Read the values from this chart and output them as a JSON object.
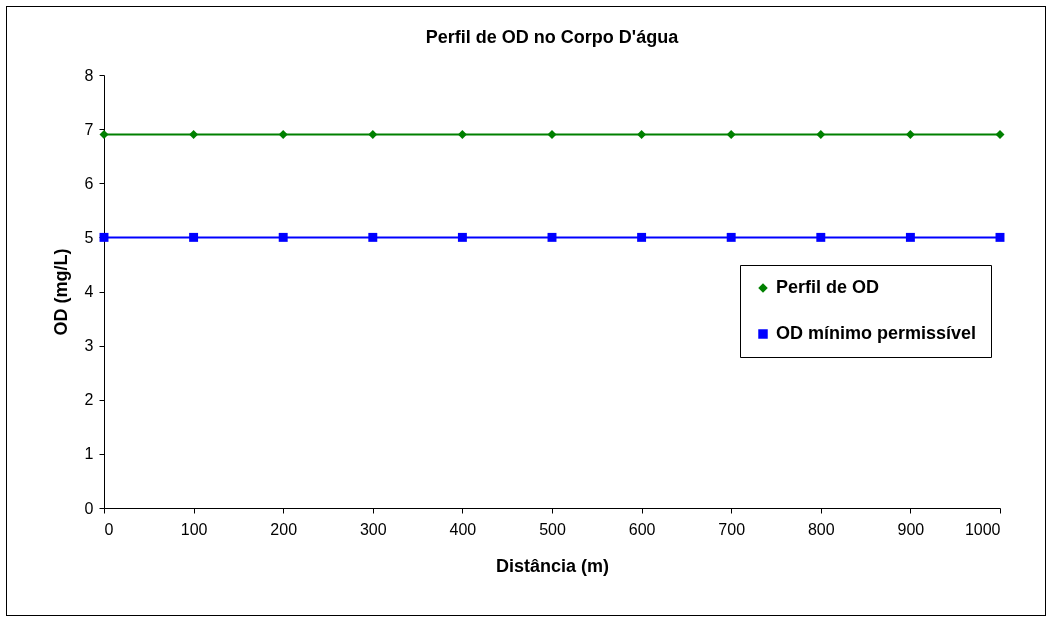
{
  "chart_data": {
    "type": "line",
    "title": "Perfil de OD no Corpo D'água",
    "xlabel": "Distância (m)",
    "ylabel": "OD (mg/L)",
    "x": [
      0,
      100,
      200,
      300,
      400,
      500,
      600,
      700,
      800,
      900,
      1000
    ],
    "series": [
      {
        "name": "Perfil de OD",
        "color": "#008000",
        "marker": "diamond",
        "values": [
          6.9,
          6.9,
          6.9,
          6.9,
          6.9,
          6.9,
          6.9,
          6.9,
          6.9,
          6.9,
          6.9
        ]
      },
      {
        "name": "OD mínimo permissível",
        "color": "#0000ff",
        "marker": "square",
        "values": [
          5,
          5,
          5,
          5,
          5,
          5,
          5,
          5,
          5,
          5,
          5
        ]
      }
    ],
    "xlim": [
      0,
      1000
    ],
    "xticks": [
      0,
      100,
      200,
      300,
      400,
      500,
      600,
      700,
      800,
      900,
      1000
    ],
    "ylim": [
      0,
      8
    ],
    "yticks": [
      0,
      1,
      2,
      3,
      4,
      5,
      6,
      7,
      8
    ],
    "grid": false,
    "legend": "right",
    "line_style": "solid"
  }
}
